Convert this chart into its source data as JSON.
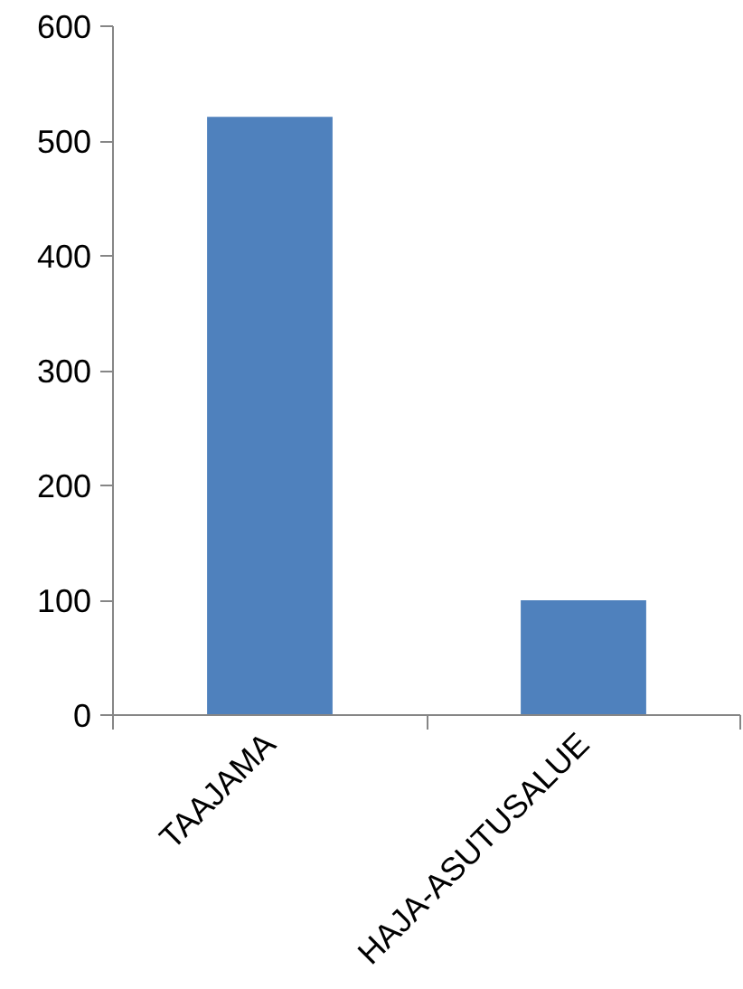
{
  "chart_data": {
    "type": "bar",
    "categories": [
      "TAAJAMA",
      "HAJA-ASUTUSALUE"
    ],
    "values": [
      521,
      100
    ],
    "color": "#4f81bd",
    "ylim": [
      0,
      600
    ],
    "yticks": [
      0,
      100,
      200,
      300,
      400,
      500,
      600
    ],
    "grid": false
  }
}
